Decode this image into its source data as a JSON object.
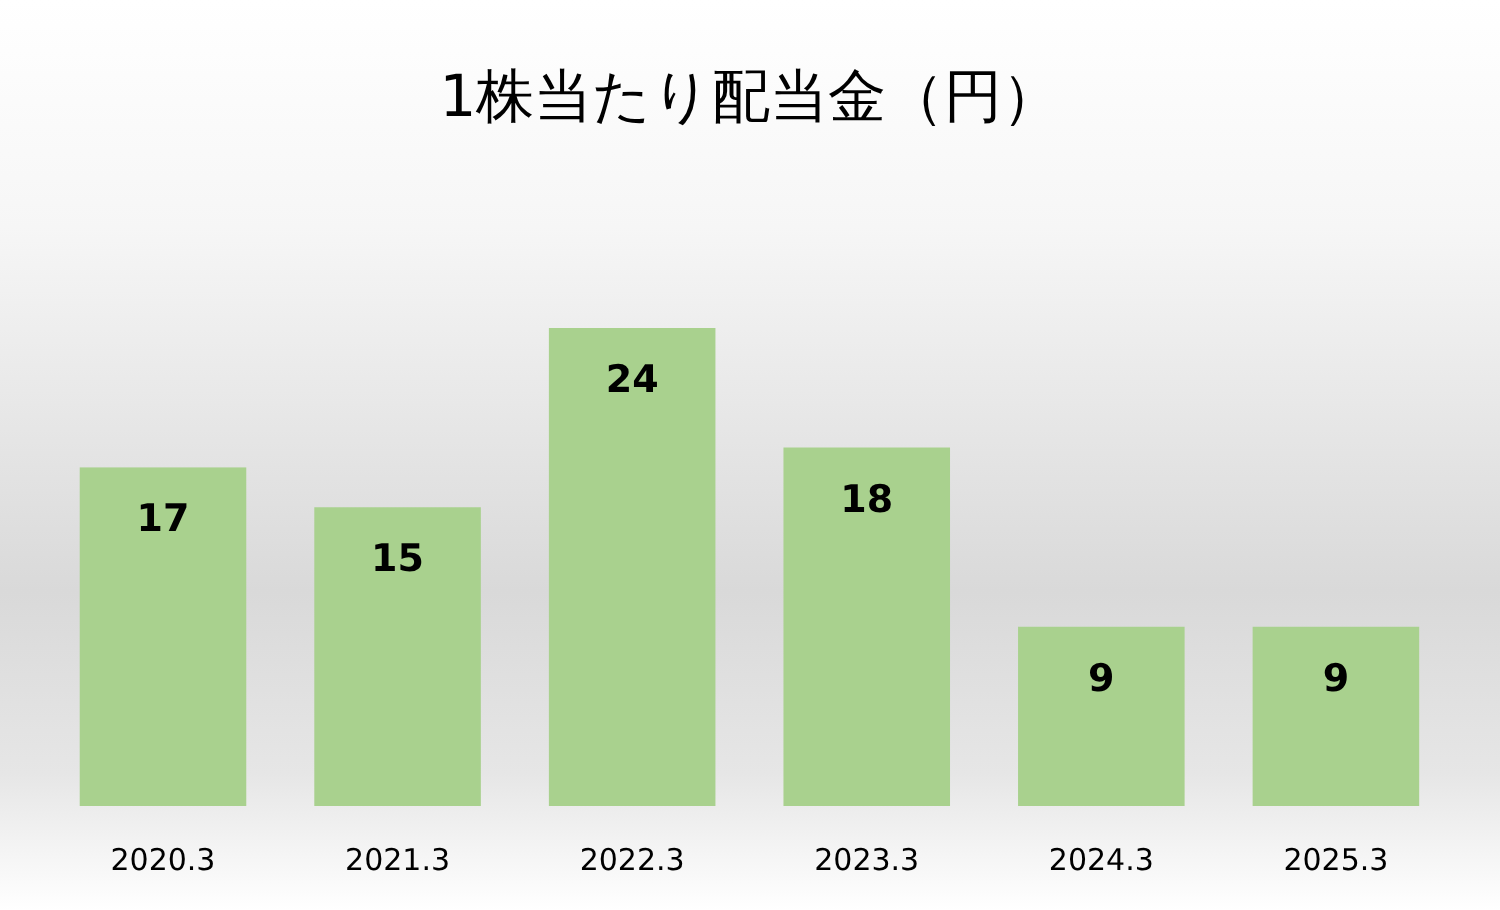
{
  "chart_data": {
    "type": "bar",
    "title": "1株当たり配当金（円）",
    "categories": [
      "2020.3",
      "2021.3",
      "2022.3",
      "2023.3",
      "2024.3",
      "2025.3"
    ],
    "values": [
      17,
      15,
      24,
      18,
      9,
      9
    ],
    "color": "#a9d18e",
    "data_labels": true
  }
}
